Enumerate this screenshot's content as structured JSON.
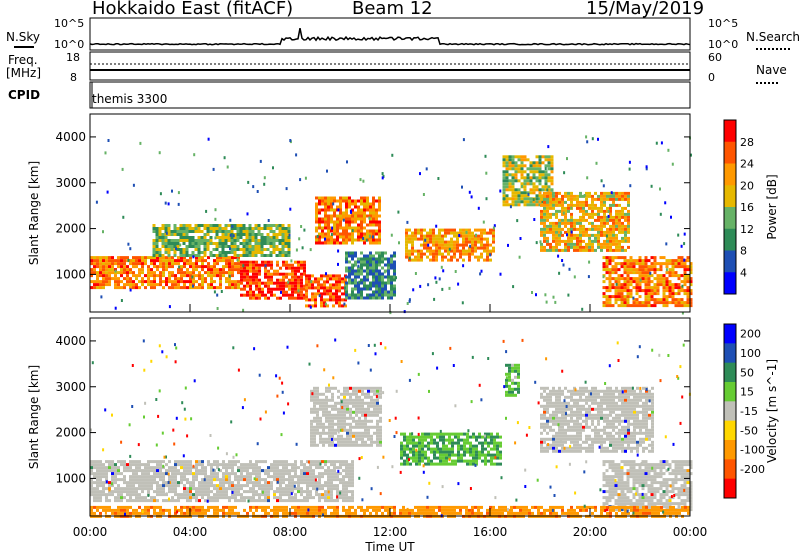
{
  "header": {
    "station": "Hokkaido East (fitACF)",
    "beam": "Beam 12",
    "date": "15/May/2019"
  },
  "noise_panel": {
    "left_label": "N.Sky",
    "right_label": "N.Search",
    "tick_top": "10^5",
    "tick_bottom": "10^0",
    "right_tick_top": "10^5",
    "right_tick_bottom": "10^0"
  },
  "freq_panel": {
    "left_label_1": "Freq.",
    "left_label_2": "[MHz]",
    "left_tick_top": "18",
    "left_tick_bottom": "8",
    "right_label": "Nave",
    "right_tick_top": "60",
    "right_tick_bottom": "0"
  },
  "cpid_panel": {
    "label": "CPID",
    "value": "themis 3300"
  },
  "colors": {
    "power_scale": [
      "#0000ff",
      "#1e4fb4",
      "#2e8b57",
      "#66b266",
      "#e6b800",
      "#ff9900",
      "#ff5500",
      "#ff0000"
    ],
    "velocity_scale": [
      "#0000ff",
      "#1e4fb4",
      "#2e8b57",
      "#66cc33",
      "#c0c0b8",
      "#ffd700",
      "#ff9900",
      "#ff5500",
      "#ff0000"
    ],
    "ground_scatter": "#c0c0b8"
  },
  "chart_data": [
    {
      "type": "heatmap",
      "title": "",
      "xlabel": "",
      "ylabel": "Slant Range [km]",
      "colorbar_label": "Power [dB]",
      "colorbar_ticks": [
        "28",
        "24",
        "20",
        "16",
        "12",
        "8",
        "4"
      ],
      "x_ticks": [
        "00:00",
        "04:00",
        "08:00",
        "12:00",
        "16:00",
        "20:00",
        "00:00"
      ],
      "y_ticks": [
        "1000",
        "2000",
        "3000",
        "4000"
      ],
      "xlim_hours": [
        0,
        24
      ],
      "ylim_km": [
        180,
        4500
      ],
      "clim_db": [
        0,
        32
      ],
      "regions": [
        {
          "t0": 0.0,
          "t1": 6.0,
          "r0": 700,
          "r1": 1400,
          "value": 24
        },
        {
          "t0": 6.0,
          "t1": 8.6,
          "r0": 500,
          "r1": 1300,
          "value": 28
        },
        {
          "t0": 8.6,
          "t1": 10.2,
          "r0": 300,
          "r1": 1000,
          "value": 26
        },
        {
          "t0": 2.5,
          "t1": 8.0,
          "r0": 1400,
          "r1": 2100,
          "value": 14
        },
        {
          "t0": 9.0,
          "t1": 11.6,
          "r0": 1700,
          "r1": 2700,
          "value": 24
        },
        {
          "t0": 10.2,
          "t1": 12.2,
          "r0": 500,
          "r1": 1500,
          "value": 10
        },
        {
          "t0": 12.6,
          "t1": 16.2,
          "r0": 1300,
          "r1": 2000,
          "value": 22
        },
        {
          "t0": 16.5,
          "t1": 18.5,
          "r0": 2500,
          "r1": 3600,
          "value": 16
        },
        {
          "t0": 18.0,
          "t1": 21.5,
          "r0": 1500,
          "r1": 2800,
          "value": 20
        },
        {
          "t0": 20.5,
          "t1": 24.0,
          "r0": 300,
          "r1": 1400,
          "value": 24
        }
      ]
    },
    {
      "type": "heatmap",
      "title": "",
      "xlabel": "Time UT",
      "ylabel": "Slant Range [km]",
      "colorbar_label": "Velocity [m s^-1]",
      "colorbar_ticks": [
        "200",
        "100",
        "50",
        "15",
        "-15",
        "-50",
        "-100",
        "-200"
      ],
      "x_ticks": [
        "00:00",
        "04:00",
        "08:00",
        "12:00",
        "16:00",
        "20:00",
        "00:00"
      ],
      "y_ticks": [
        "1000",
        "2000",
        "3000",
        "4000"
      ],
      "xlim_hours": [
        0,
        24
      ],
      "ylim_km": [
        180,
        4500
      ],
      "clim_ms": [
        -250,
        250
      ],
      "regions": [
        {
          "t0": 0.0,
          "t1": 10.5,
          "r0": 500,
          "r1": 1400,
          "value": 0,
          "ground": true
        },
        {
          "t0": 8.8,
          "t1": 11.6,
          "r0": 1700,
          "r1": 3000,
          "value": 0,
          "ground": true
        },
        {
          "t0": 12.4,
          "t1": 16.4,
          "r0": 1300,
          "r1": 2000,
          "value": 45
        },
        {
          "t0": 16.6,
          "t1": 17.2,
          "r0": 2800,
          "r1": 3500,
          "value": 40
        },
        {
          "t0": 18.0,
          "t1": 22.5,
          "r0": 1600,
          "r1": 3000,
          "value": 0,
          "ground": true
        },
        {
          "t0": 20.5,
          "t1": 24.0,
          "r0": 300,
          "r1": 1400,
          "value": 0,
          "ground": true
        },
        {
          "t0": 0.0,
          "t1": 24.0,
          "r0": 200,
          "r1": 400,
          "value": -80
        }
      ]
    }
  ]
}
